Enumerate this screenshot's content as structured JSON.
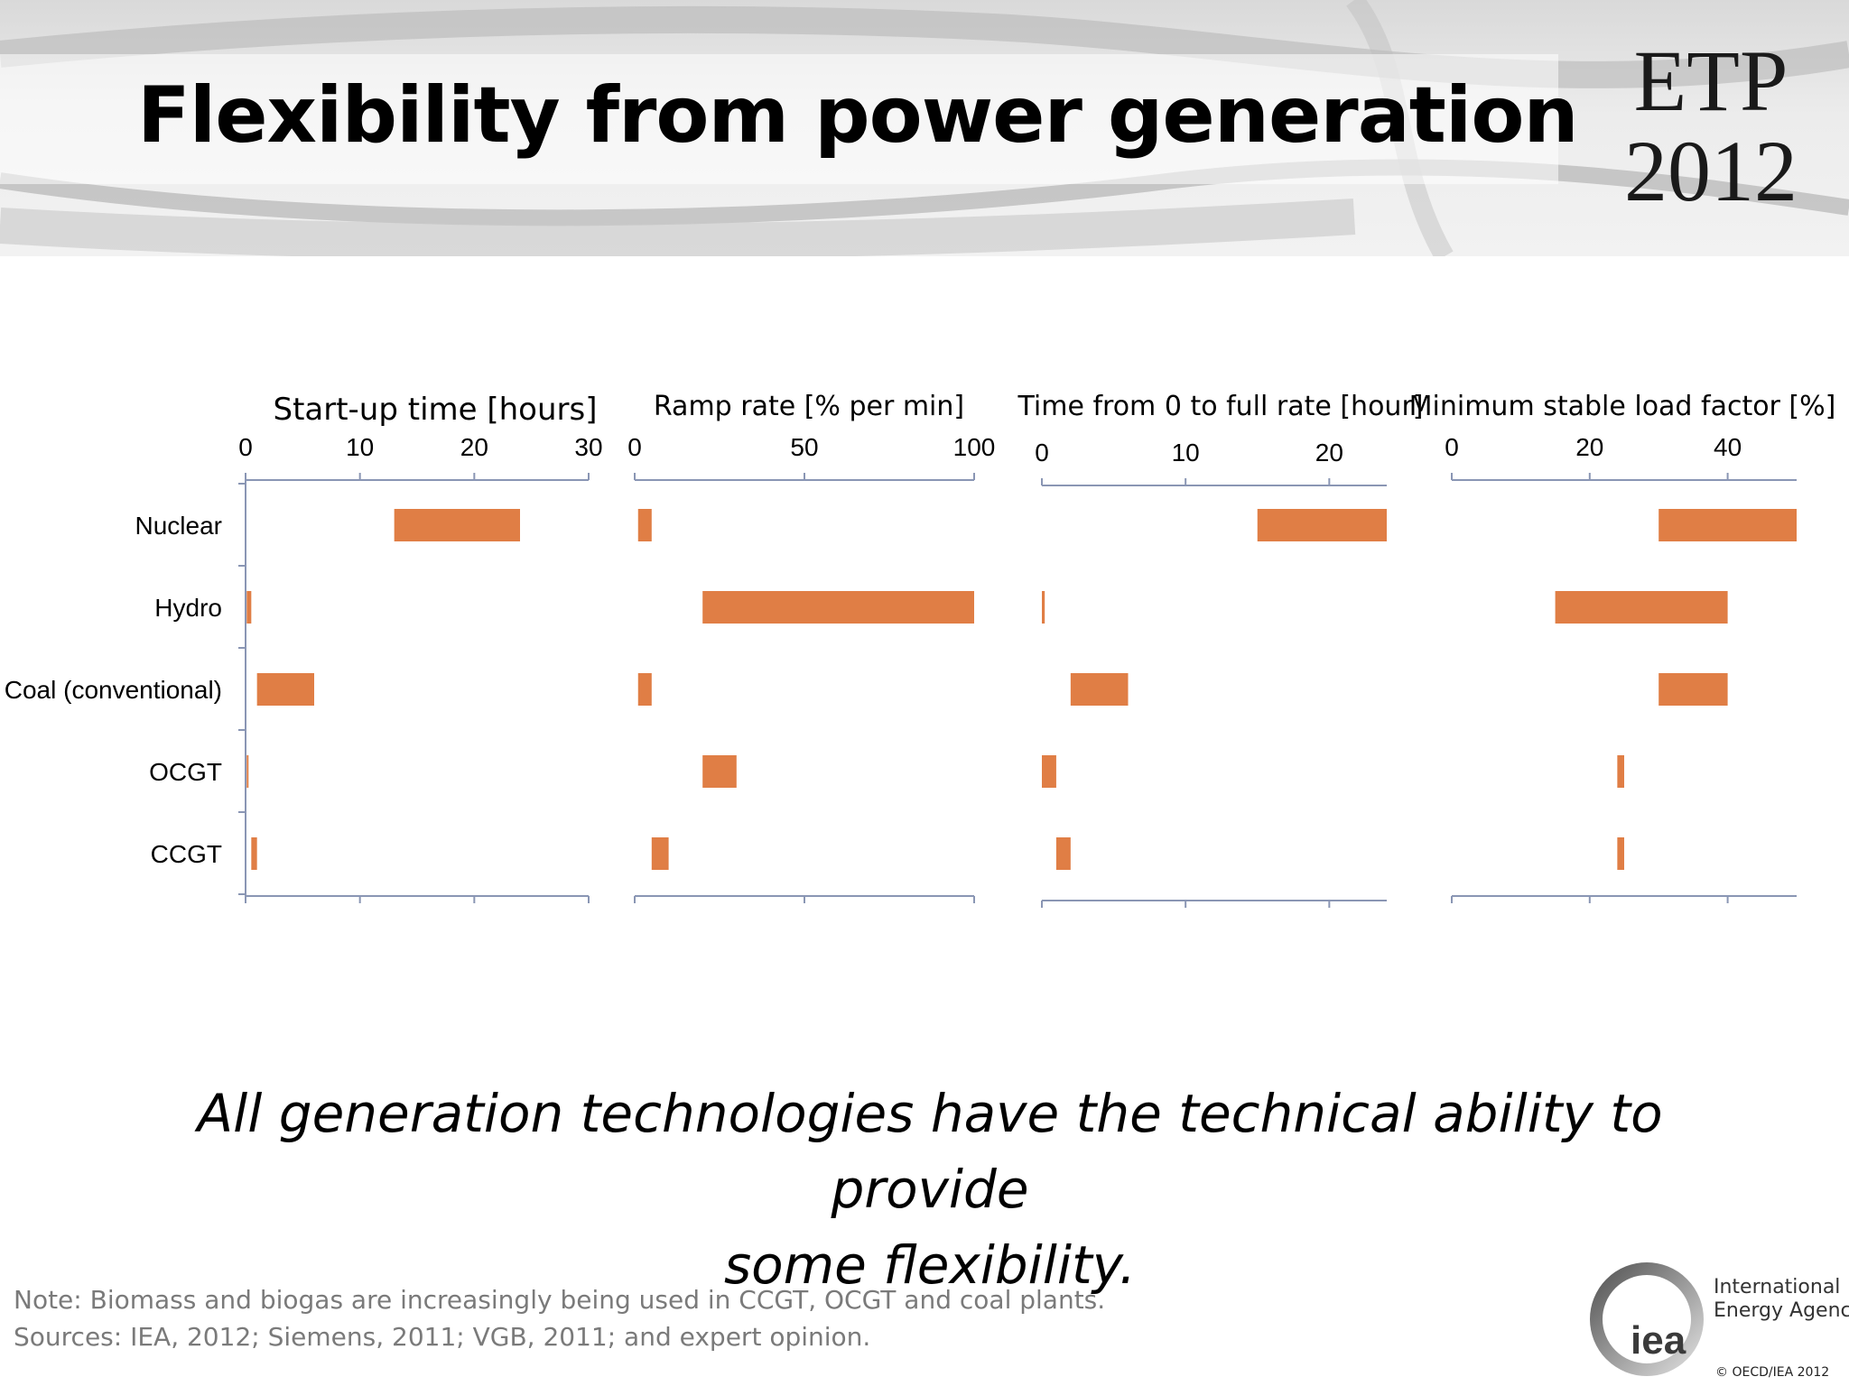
{
  "slide": {
    "title": "Flexibility from power generation",
    "logo_line1": "ETP",
    "logo_line2": "2012",
    "takeaway_line1": "All generation technologies have the technical ability to provide",
    "takeaway_line2": "some flexibility.",
    "note": "Note: Biomass and biogas are increasingly being used in CCGT, OCGT and coal plants.",
    "sources": "Sources: IEA, 2012; Siemens, 2011; VGB, 2011; and expert opinion.",
    "org_name_line1": "International",
    "org_name_line2": "Energy Agency",
    "org_mark": "iea",
    "copyright": "© OECD/IEA 2012"
  },
  "colors": {
    "bar": "#E07E45",
    "axis": "#8a96b4",
    "text": "#000000"
  },
  "chart_data": [
    {
      "type": "bar",
      "orientation": "horizontal-floating",
      "title": "Start-up time [hours]",
      "categories": [
        "Nuclear",
        "Hydro",
        "Coal (conventional)",
        "OCGT",
        "CCGT"
      ],
      "ranges": [
        [
          13,
          24
        ],
        [
          0.1,
          0.5
        ],
        [
          1,
          6
        ],
        [
          0.1,
          0.25
        ],
        [
          0.5,
          1
        ]
      ],
      "xlim": [
        0,
        30
      ],
      "xticks": [
        0,
        10,
        20,
        30
      ]
    },
    {
      "type": "bar",
      "orientation": "horizontal-floating",
      "title": "Ramp rate [% per min]",
      "categories": [
        "Nuclear",
        "Hydro",
        "Coal (conventional)",
        "OCGT",
        "CCGT"
      ],
      "ranges": [
        [
          1,
          5
        ],
        [
          20,
          100
        ],
        [
          1,
          5
        ],
        [
          20,
          30
        ],
        [
          5,
          10
        ]
      ],
      "xlim": [
        0,
        100
      ],
      "xticks": [
        0,
        50,
        100
      ]
    },
    {
      "type": "bar",
      "orientation": "horizontal-floating",
      "title": "Time from 0 to full rate [hour]",
      "categories": [
        "Nuclear",
        "Hydro",
        "Coal (conventional)",
        "OCGT",
        "CCGT"
      ],
      "ranges": [
        [
          15,
          24
        ],
        [
          0,
          0.2
        ],
        [
          2,
          6
        ],
        [
          0,
          1
        ],
        [
          1,
          2
        ]
      ],
      "xlim": [
        0,
        24
      ],
      "xticks": [
        0,
        10,
        20
      ]
    },
    {
      "type": "bar",
      "orientation": "horizontal-floating",
      "title": "Minimum stable load factor [%]",
      "categories": [
        "Nuclear",
        "Hydro",
        "Coal (conventional)",
        "OCGT",
        "CCGT"
      ],
      "ranges": [
        [
          30,
          50
        ],
        [
          15,
          40
        ],
        [
          30,
          40
        ],
        [
          24,
          25
        ],
        [
          24,
          25
        ]
      ],
      "xlim": [
        0,
        50
      ],
      "xticks": [
        0,
        20,
        40
      ]
    }
  ]
}
